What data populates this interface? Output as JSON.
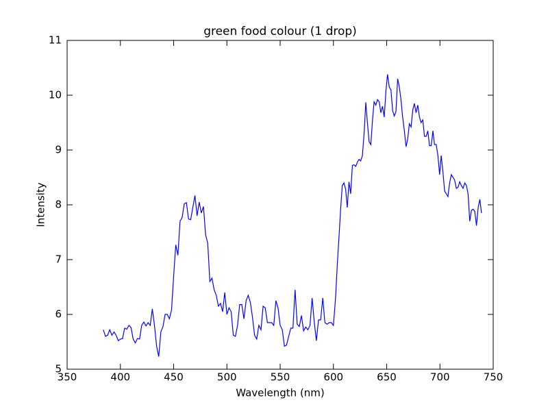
{
  "chart_data": {
    "type": "line",
    "title": "green food colour (1 drop)",
    "xlabel": "Wavelength (nm)",
    "ylabel": "Intensity",
    "color": "#0000ff",
    "x": [
      384,
      386,
      388,
      390,
      392,
      394,
      396,
      398,
      400,
      402,
      404,
      406,
      408,
      410,
      412,
      414,
      416,
      418,
      420,
      422,
      424,
      426,
      428,
      430,
      432,
      434,
      436,
      438,
      440,
      442,
      444,
      446,
      448,
      450,
      452,
      454,
      456,
      458,
      460,
      462,
      464,
      466,
      468,
      470,
      472,
      474,
      476,
      478,
      480,
      482,
      484,
      486,
      488,
      490,
      492,
      494,
      496,
      498,
      500,
      502,
      504,
      506,
      508,
      510,
      512,
      514,
      516,
      518,
      520,
      522,
      524,
      526,
      528,
      530,
      532,
      534,
      536,
      538,
      540,
      542,
      544,
      546,
      548,
      550,
      552,
      554,
      556,
      558,
      560,
      562,
      564,
      566,
      568,
      570,
      572,
      574,
      576,
      578,
      580,
      582,
      584,
      586,
      588,
      590,
      592,
      594,
      596,
      598,
      600,
      602.0,
      603.6,
      605.2,
      606.7,
      608.3,
      609.9,
      611.5,
      613.0,
      614.6,
      616.2,
      617.8,
      619.3,
      620.9,
      622.5,
      624.1,
      625.6,
      627.2,
      628.8,
      630.4,
      631.9,
      633.5,
      635.1,
      636.7,
      638.2,
      639.8,
      641.4,
      643.0,
      644.5,
      646.1,
      647.7,
      649.3,
      650.8,
      652.4,
      654.0,
      655.6,
      657.1,
      658.7,
      660.3,
      661.9,
      663.4,
      665.0,
      666.6,
      668.2,
      669.7,
      671.3,
      672.9,
      674.5,
      676.0,
      677.6,
      679.2,
      680.8,
      682.3,
      683.9,
      685.5,
      687.1,
      688.6,
      690.2,
      691.8,
      693.4,
      694.9,
      696.5,
      698.1,
      699.7,
      701.2,
      702.8,
      704.4,
      706.0,
      707.5,
      709.1,
      710.7,
      712.3,
      713.8,
      715.4,
      717.0,
      718.6,
      720.1,
      721.7,
      723.3,
      724.9,
      726.4,
      728.0,
      729.6,
      731.2,
      732.7,
      734.3,
      735.9,
      737.5,
      739.0
    ],
    "values": [
      5.72,
      5.6,
      5.62,
      5.72,
      5.62,
      5.68,
      5.62,
      5.52,
      5.55,
      5.56,
      5.75,
      5.73,
      5.8,
      5.76,
      5.55,
      5.48,
      5.56,
      5.55,
      5.8,
      5.86,
      5.79,
      5.85,
      5.8,
      6.1,
      5.8,
      5.42,
      5.23,
      5.68,
      5.78,
      6.0,
      6.0,
      5.92,
      6.08,
      6.7,
      7.27,
      7.08,
      7.7,
      7.77,
      8.02,
      8.04,
      7.74,
      7.73,
      7.95,
      8.17,
      7.8,
      8.05,
      7.85,
      7.97,
      7.45,
      7.3,
      6.6,
      6.66,
      6.45,
      6.35,
      6.15,
      6.2,
      6.05,
      6.4,
      6.0,
      6.12,
      6.05,
      5.62,
      5.6,
      5.8,
      6.18,
      6.18,
      5.92,
      6.25,
      6.35,
      6.22,
      5.95,
      5.62,
      5.55,
      5.8,
      5.72,
      6.15,
      6.12,
      5.85,
      5.85,
      5.85,
      5.8,
      6.25,
      6.12,
      5.8,
      5.72,
      5.42,
      5.44,
      5.6,
      5.75,
      5.75,
      6.45,
      5.82,
      5.78,
      5.98,
      5.7,
      5.77,
      5.72,
      5.8,
      6.3,
      5.86,
      5.52,
      5.9,
      5.9,
      6.3,
      5.85,
      5.82,
      5.85,
      5.85,
      5.8,
      6.3,
      6.9,
      7.4,
      7.9,
      8.35,
      8.4,
      8.28,
      7.95,
      8.42,
      8.2,
      8.72,
      8.73,
      8.7,
      8.78,
      8.83,
      8.8,
      8.9,
      9.3,
      9.87,
      9.5,
      9.15,
      9.1,
      9.55,
      9.88,
      9.82,
      9.92,
      9.88,
      9.68,
      9.8,
      9.6,
      10.08,
      10.38,
      10.15,
      10.1,
      9.72,
      9.62,
      9.7,
      10.3,
      10.15,
      9.92,
      9.6,
      9.35,
      9.06,
      9.2,
      9.48,
      9.42,
      9.73,
      9.85,
      9.68,
      9.82,
      9.6,
      9.5,
      9.55,
      9.25,
      9.25,
      9.35,
      9.08,
      9.08,
      9.35,
      9.1,
      9.1,
      8.9,
      8.55,
      8.9,
      8.6,
      8.25,
      8.2,
      8.15,
      8.4,
      8.55,
      8.5,
      8.45,
      8.3,
      8.32,
      8.42,
      8.35,
      8.3,
      8.4,
      8.35,
      8.2,
      7.7,
      7.9,
      7.92,
      7.88,
      7.62,
      7.95,
      8.1,
      7.85
    ],
    "xlim": [
      350,
      750
    ],
    "xticks": [
      350,
      400,
      450,
      500,
      550,
      600,
      650,
      700,
      750
    ],
    "ylim": [
      5,
      11
    ],
    "yticks": [
      5,
      6,
      7,
      8,
      9,
      10,
      11
    ]
  }
}
